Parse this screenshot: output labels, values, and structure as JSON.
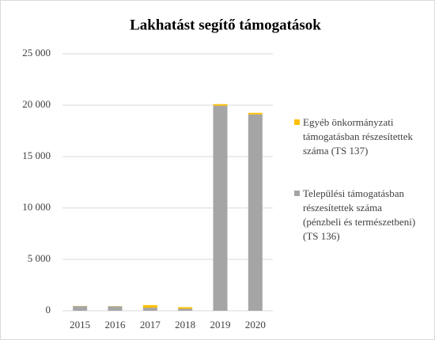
{
  "chart_data": {
    "type": "bar",
    "stacked": true,
    "title": "Lakhatást segítő támogatások",
    "categories": [
      "2015",
      "2016",
      "2017",
      "2018",
      "2019",
      "2020"
    ],
    "series": [
      {
        "name": "Települési támogatásban részesítettek száma (pénzbeli és természetbeni) (TS 136)",
        "color": "#a5a5a5",
        "values": [
          450,
          430,
          300,
          200,
          19950,
          19100
        ]
      },
      {
        "name": "Egyéb önkormányzati támogatásban részesítettek száma (TS 137)",
        "color": "#ffc000",
        "values": [
          20,
          20,
          250,
          150,
          150,
          150
        ]
      }
    ],
    "ylim": [
      0,
      25000
    ],
    "yticks": [
      {
        "value": 0,
        "label": "0"
      },
      {
        "value": 5000,
        "label": "5 000"
      },
      {
        "value": 10000,
        "label": "10 000"
      },
      {
        "value": 15000,
        "label": "15 000"
      },
      {
        "value": 20000,
        "label": "20 000"
      },
      {
        "value": 25000,
        "label": "25 000"
      }
    ],
    "grid": true,
    "legend": "right"
  }
}
